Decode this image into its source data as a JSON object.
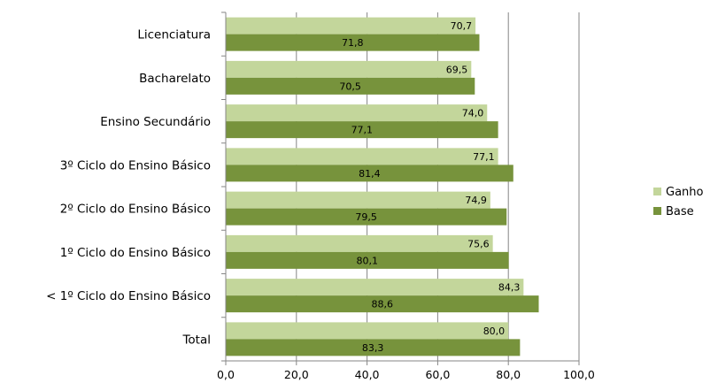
{
  "chart_data": {
    "type": "bar",
    "orientation": "horizontal",
    "categories": [
      "Licenciatura",
      "Bacharelato",
      "Ensino Secundário",
      "3º Ciclo do Ensino Básico",
      "2º Ciclo do Ensino Básico",
      "1º Ciclo do Ensino Básico",
      "< 1º Ciclo do Ensino Básico",
      "Total"
    ],
    "series": [
      {
        "name": "Ganho",
        "color": "#c3d69b",
        "values": [
          70.7,
          69.5,
          74.0,
          77.1,
          74.9,
          75.6,
          84.3,
          80.0
        ],
        "labels": [
          "70,7",
          "69,5",
          "74,0",
          "77,1",
          "74,9",
          "75,6",
          "84,3",
          "80,0"
        ]
      },
      {
        "name": "Base",
        "color": "#77933c",
        "values": [
          71.8,
          70.5,
          77.1,
          81.4,
          79.5,
          80.1,
          88.6,
          83.3
        ],
        "labels": [
          "71,8",
          "70,5",
          "77,1",
          "81,4",
          "79,5",
          "80,1",
          "88,6",
          "83,3"
        ]
      }
    ],
    "xlim": [
      0,
      100
    ],
    "xticks": [
      0,
      20,
      40,
      60,
      80,
      100
    ],
    "xtick_labels": [
      "0,0",
      "20,0",
      "40,0",
      "60,0",
      "80,0",
      "100,0"
    ],
    "grid": "vertical gridlines",
    "legend_position": "right"
  }
}
